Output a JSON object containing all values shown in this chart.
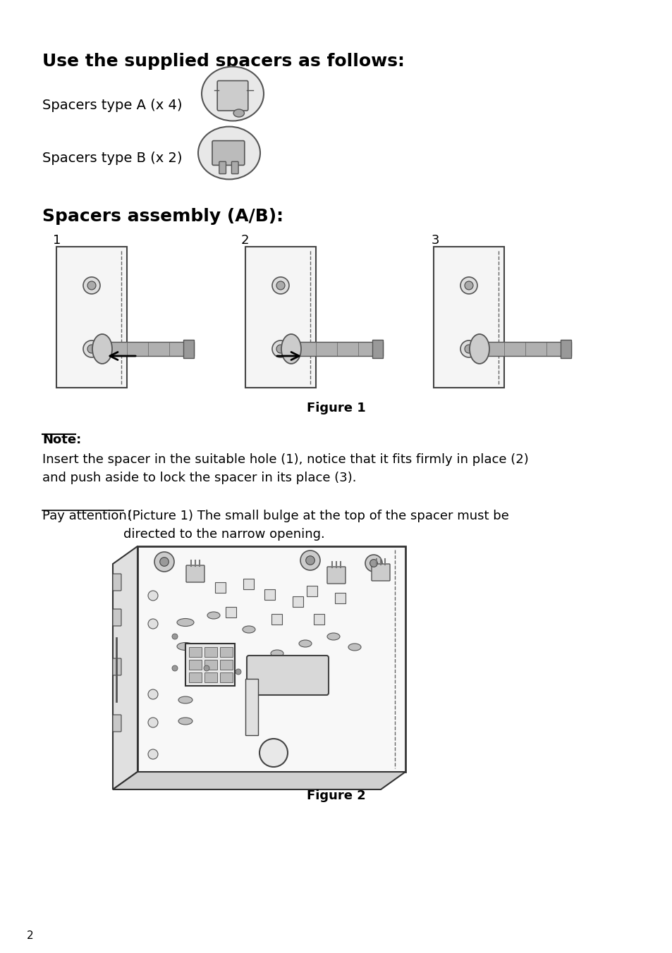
{
  "bg_color": "#ffffff",
  "title1": "Use the supplied spacers as follows:",
  "title2": "Spacers assembly (A/B):",
  "spacer_a_label": "Spacers type A (x 4)",
  "spacer_b_label": "Spacers type B (x 2)",
  "fig1_caption": "Figure 1",
  "fig2_caption": "Figure 2",
  "note_title": "Note:",
  "note_text": "Insert the spacer in the suitable hole (1), notice that it fits firmly in place (2)\nand push aside to lock the spacer in its place (3).",
  "pay_attention_underline": "Pay attention!",
  "pay_attention_rest": " (Picture 1) The small bulge at the top of the spacer must be\ndirected to the narrow opening.",
  "page_number": "2",
  "fig_numbers": [
    "1",
    "2",
    "3"
  ],
  "text_color": "#000000",
  "line_color": "#000000",
  "gray_color": "#888888",
  "light_gray": "#bbbbbb",
  "medium_gray": "#999999"
}
